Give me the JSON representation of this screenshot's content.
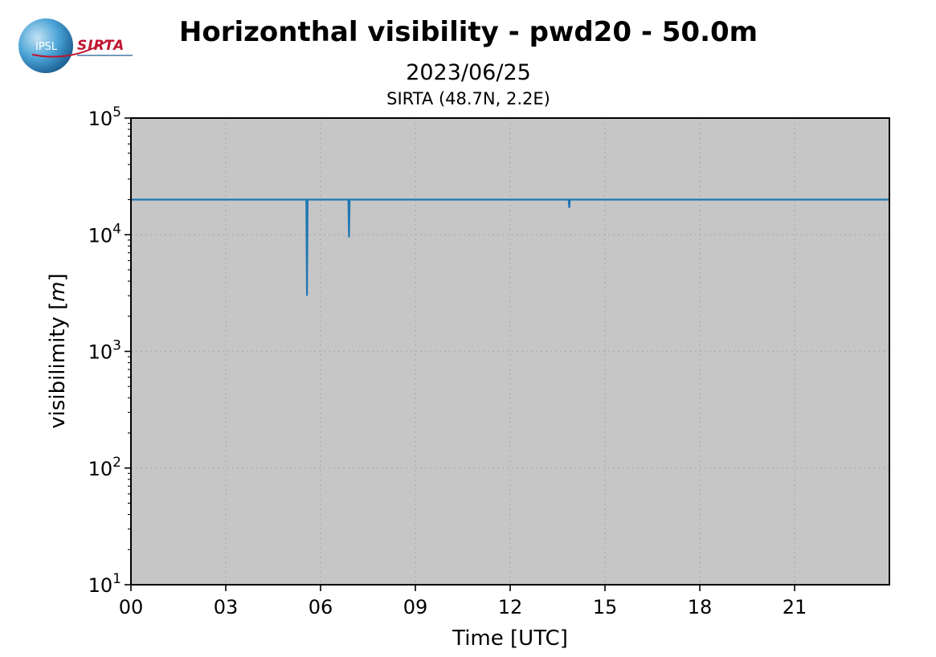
{
  "logo": {
    "ipsl_text": "IPSL",
    "sirta_text": "SIRTA"
  },
  "chart_data": {
    "type": "line",
    "title": "Horizonthal visibility - pwd20 - 50.0m",
    "subtitle": "2023/06/25",
    "location": "SIRTA (48.7N, 2.2E)",
    "xlabel": "Time [UTC]",
    "ylabel_text": "visibilimity [",
    "ylabel_unit": "m",
    "ylabel_close": "]",
    "xlim": [
      0,
      24
    ],
    "ylim": [
      10,
      100000
    ],
    "yscale": "log",
    "grid": true,
    "x_ticks": [
      {
        "value": 0,
        "label": "00"
      },
      {
        "value": 3,
        "label": "03"
      },
      {
        "value": 6,
        "label": "06"
      },
      {
        "value": 9,
        "label": "09"
      },
      {
        "value": 12,
        "label": "12"
      },
      {
        "value": 15,
        "label": "15"
      },
      {
        "value": 18,
        "label": "18"
      },
      {
        "value": 21,
        "label": "21"
      }
    ],
    "y_ticks": [
      {
        "value": 10,
        "base": "10",
        "exp": "1"
      },
      {
        "value": 100,
        "base": "10",
        "exp": "2"
      },
      {
        "value": 1000,
        "base": "10",
        "exp": "3"
      },
      {
        "value": 10000,
        "base": "10",
        "exp": "4"
      },
      {
        "value": 100000,
        "base": "10",
        "exp": "5"
      }
    ],
    "colors": {
      "line": "#1f77b4",
      "plot_background": "#c6c6c6",
      "grid": "#b0b0b0"
    },
    "series": [
      {
        "x": [
          0,
          5.55,
          5.57,
          5.59,
          6.88,
          6.9,
          6.92,
          13.85,
          13.87,
          13.89,
          24
        ],
        "y": [
          20000,
          20000,
          3000,
          20000,
          20000,
          9500,
          20000,
          20000,
          17000,
          20000,
          20000
        ]
      }
    ]
  }
}
